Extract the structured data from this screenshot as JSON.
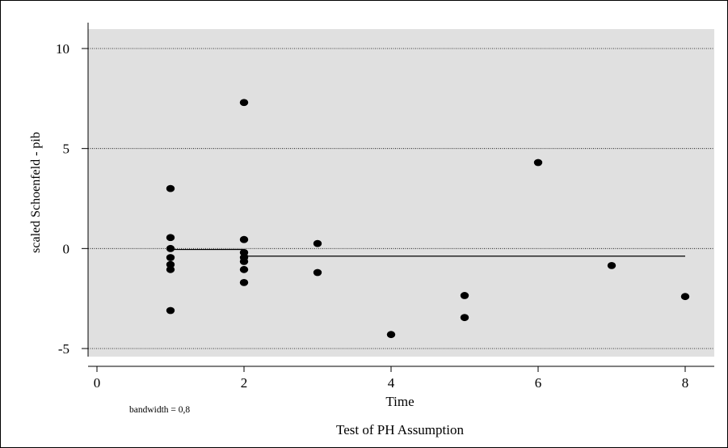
{
  "chart_data": {
    "type": "scatter",
    "title": "Test of PH Assumption",
    "xlabel": "Time",
    "ylabel": "scaled Schoenfeld - pib",
    "note": "bandwidth = 0,8",
    "xlim": [
      0,
      8
    ],
    "ylim": [
      -5,
      10
    ],
    "xticks": [
      0,
      2,
      4,
      6,
      8
    ],
    "yticks": [
      -5,
      0,
      5,
      10
    ],
    "xtick_labels": [
      "0",
      "2",
      "4",
      "6",
      "8"
    ],
    "ytick_labels": [
      "-5",
      "0",
      "5",
      "10"
    ],
    "grid": true,
    "background_color": "#e0e0e0",
    "marker_color": "#000000",
    "points": [
      {
        "x": 1,
        "y": 3.0
      },
      {
        "x": 1,
        "y": 0.55
      },
      {
        "x": 1,
        "y": 0.0
      },
      {
        "x": 1,
        "y": -0.45
      },
      {
        "x": 1,
        "y": -0.8
      },
      {
        "x": 1,
        "y": -1.05
      },
      {
        "x": 1,
        "y": -3.1
      },
      {
        "x": 2,
        "y": 7.3
      },
      {
        "x": 2,
        "y": 0.45
      },
      {
        "x": 2,
        "y": -0.2
      },
      {
        "x": 2,
        "y": -0.45
      },
      {
        "x": 2,
        "y": -0.65
      },
      {
        "x": 2,
        "y": -1.05
      },
      {
        "x": 2,
        "y": -1.7
      },
      {
        "x": 3,
        "y": 0.25
      },
      {
        "x": 3,
        "y": -1.2
      },
      {
        "x": 4,
        "y": -4.3
      },
      {
        "x": 5,
        "y": -2.35
      },
      {
        "x": 5,
        "y": -3.45
      },
      {
        "x": 6,
        "y": 4.3
      },
      {
        "x": 7,
        "y": -0.85
      },
      {
        "x": 8,
        "y": -2.4
      }
    ],
    "smooth_line": [
      {
        "x": 1,
        "y": -0.05
      },
      {
        "x": 2,
        "y": -0.05
      },
      {
        "x": 2.05,
        "y": -0.38
      },
      {
        "x": 8,
        "y": -0.38
      }
    ]
  }
}
